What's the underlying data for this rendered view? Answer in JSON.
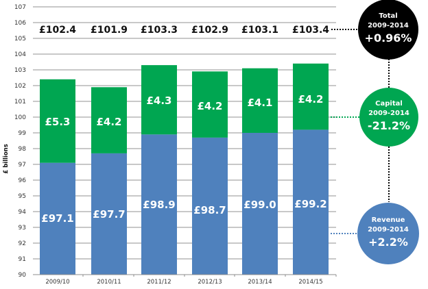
{
  "chart_data": {
    "type": "bar",
    "stacked": true,
    "title": "",
    "xlabel": "",
    "ylabel": "£ billions",
    "ylim": [
      90,
      107
    ],
    "yticks": [
      90,
      91,
      92,
      93,
      94,
      95,
      96,
      97,
      98,
      99,
      100,
      101,
      102,
      103,
      104,
      105,
      106,
      107
    ],
    "grid": true,
    "categories": [
      "2009/10",
      "2010/11",
      "2011/12",
      "2012/13",
      "2013/14",
      "2014/15"
    ],
    "series": [
      {
        "name": "Revenue",
        "color": "#4f81bd",
        "values": [
          97.1,
          97.7,
          98.9,
          98.7,
          99.0,
          99.2
        ],
        "labels": [
          "£97.1",
          "£97.7",
          "£98.9",
          "£98.7",
          "£99.0",
          "£99.2"
        ]
      },
      {
        "name": "Capital",
        "color": "#00a651",
        "values": [
          5.3,
          4.2,
          4.3,
          4.2,
          4.1,
          4.2
        ],
        "labels": [
          "£5.3",
          "£4.2",
          "£4.3",
          "£4.2",
          "£4.1",
          "£4.2"
        ]
      }
    ],
    "totals": [
      102.4,
      101.9,
      103.3,
      102.9,
      103.1,
      103.4
    ],
    "total_labels": [
      "£102.4",
      "£101.9",
      "£103.3",
      "£102.9",
      "£103.1",
      "£103.4"
    ],
    "annotations": [
      {
        "name": "Total",
        "period": "2009-2014",
        "change": "+0.96%",
        "color": "#000000"
      },
      {
        "name": "Capital",
        "period": "2009-2014",
        "change": "-21.2%",
        "color": "#00a651"
      },
      {
        "name": "Revenue",
        "period": "2009-2014",
        "change": "+2.2%",
        "color": "#4f81bd"
      }
    ]
  }
}
